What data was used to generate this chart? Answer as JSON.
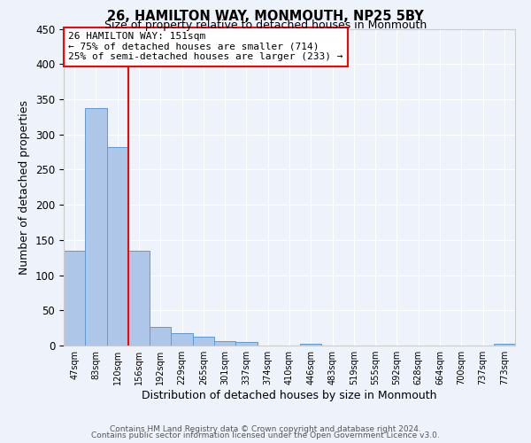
{
  "title": "26, HAMILTON WAY, MONMOUTH, NP25 5BY",
  "subtitle": "Size of property relative to detached houses in Monmouth",
  "xlabel": "Distribution of detached houses by size in Monmouth",
  "ylabel": "Number of detached properties",
  "bar_labels": [
    "47sqm",
    "83sqm",
    "120sqm",
    "156sqm",
    "192sqm",
    "229sqm",
    "265sqm",
    "301sqm",
    "337sqm",
    "374sqm",
    "410sqm",
    "446sqm",
    "483sqm",
    "519sqm",
    "555sqm",
    "592sqm",
    "628sqm",
    "664sqm",
    "700sqm",
    "737sqm",
    "773sqm"
  ],
  "bar_values": [
    135,
    337,
    282,
    135,
    27,
    18,
    13,
    6,
    5,
    0,
    0,
    2,
    0,
    0,
    0,
    0,
    0,
    0,
    0,
    0,
    2
  ],
  "bar_color": "#aec6e8",
  "bar_edge_color": "#5b9bd5",
  "vline_x": 3,
  "vline_color": "red",
  "annotation_title": "26 HAMILTON WAY: 151sqm",
  "annotation_line1": "← 75% of detached houses are smaller (714)",
  "annotation_line2": "25% of semi-detached houses are larger (233) →",
  "annotation_box_color": "red",
  "ylim": [
    0,
    450
  ],
  "yticks": [
    0,
    50,
    100,
    150,
    200,
    250,
    300,
    350,
    400,
    450
  ],
  "footer1": "Contains HM Land Registry data © Crown copyright and database right 2024.",
  "footer2": "Contains public sector information licensed under the Open Government Licence v3.0.",
  "background_color": "#eef2fa",
  "grid_color": "#ffffff"
}
